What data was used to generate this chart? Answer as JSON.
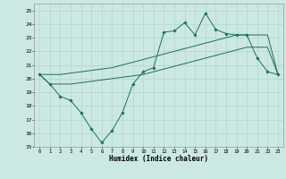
{
  "xlabel": "Humidex (Indice chaleur)",
  "bg_color": "#cce8e2",
  "line_color": "#1a6e62",
  "grid_color": "#aad4cc",
  "xlim": [
    -0.5,
    23.5
  ],
  "ylim": [
    15,
    25.5
  ],
  "xticks": [
    0,
    1,
    2,
    3,
    4,
    5,
    6,
    7,
    8,
    9,
    10,
    11,
    12,
    13,
    14,
    15,
    16,
    17,
    18,
    19,
    20,
    21,
    22,
    23
  ],
  "yticks": [
    15,
    16,
    17,
    18,
    19,
    20,
    21,
    22,
    23,
    24,
    25
  ],
  "line_zigzag_y": [
    20.3,
    19.6,
    18.7,
    18.4,
    17.5,
    16.3,
    15.3,
    16.2,
    17.5,
    19.6,
    20.5,
    20.8,
    23.4,
    23.5,
    24.1,
    23.2,
    24.8,
    23.6,
    23.3,
    23.2,
    23.2,
    21.5,
    20.5,
    20.3
  ],
  "line_upper_y": [
    20.3,
    20.3,
    20.3,
    20.4,
    20.5,
    20.6,
    20.7,
    20.8,
    21.0,
    21.2,
    21.4,
    21.6,
    21.8,
    22.0,
    22.2,
    22.4,
    22.6,
    22.8,
    23.0,
    23.2,
    23.2,
    23.2,
    23.2,
    20.3
  ],
  "line_lower_y": [
    20.3,
    19.6,
    19.6,
    19.6,
    19.7,
    19.8,
    19.9,
    20.0,
    20.1,
    20.2,
    20.3,
    20.5,
    20.7,
    20.9,
    21.1,
    21.3,
    21.5,
    21.7,
    21.9,
    22.1,
    22.3,
    22.3,
    22.3,
    20.3
  ]
}
